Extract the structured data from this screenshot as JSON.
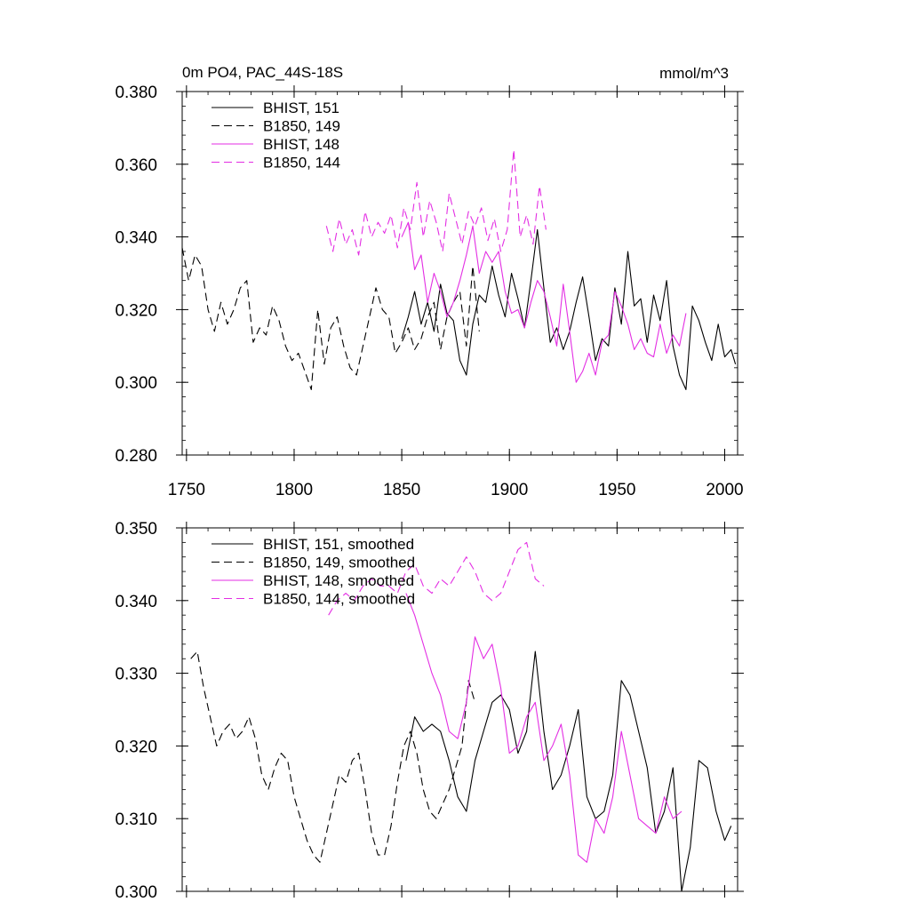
{
  "chart_data": [
    {
      "type": "line",
      "title": "0m PO4, PAC_44S-18S",
      "units": "mmol/m^3",
      "xlabel": "",
      "ylabel": "",
      "xlim": [
        1748,
        2006
      ],
      "ylim": [
        0.28,
        0.38
      ],
      "xticks": [
        1750,
        1800,
        1850,
        1900,
        1950,
        2000
      ],
      "yticks": [
        0.28,
        0.3,
        0.32,
        0.34,
        0.36,
        0.38
      ],
      "ytick_labels": [
        "0.280",
        "0.300",
        "0.320",
        "0.340",
        "0.360",
        "0.380"
      ],
      "show_xtick_labels": true,
      "legend_position": "top-left",
      "series": [
        {
          "name": "BHIST, 151",
          "color": "#000000",
          "dash": "solid",
          "x": [
            1850,
            1853,
            1856,
            1859,
            1862,
            1865,
            1868,
            1871,
            1874,
            1877,
            1880,
            1883,
            1886,
            1889,
            1892,
            1895,
            1898,
            1901,
            1904,
            1907,
            1910,
            1913,
            1916,
            1919,
            1922,
            1925,
            1928,
            1931,
            1934,
            1937,
            1940,
            1943,
            1946,
            1949,
            1952,
            1955,
            1958,
            1961,
            1964,
            1967,
            1970,
            1973,
            1976,
            1979,
            1982,
            1985,
            1988,
            1991,
            1994,
            1997,
            2000,
            2003,
            2005
          ],
          "y": [
            0.312,
            0.318,
            0.325,
            0.316,
            0.322,
            0.314,
            0.327,
            0.319,
            0.317,
            0.306,
            0.302,
            0.316,
            0.324,
            0.322,
            0.332,
            0.324,
            0.318,
            0.33,
            0.323,
            0.315,
            0.328,
            0.342,
            0.326,
            0.311,
            0.315,
            0.309,
            0.314,
            0.322,
            0.329,
            0.318,
            0.306,
            0.312,
            0.31,
            0.326,
            0.316,
            0.336,
            0.321,
            0.323,
            0.311,
            0.324,
            0.317,
            0.328,
            0.31,
            0.302,
            0.298,
            0.321,
            0.317,
            0.311,
            0.306,
            0.316,
            0.307,
            0.309,
            0.305
          ]
        },
        {
          "name": "B1850, 149",
          "color": "#000000",
          "dash": "dashed",
          "x": [
            1748,
            1751,
            1754,
            1757,
            1760,
            1763,
            1766,
            1769,
            1772,
            1775,
            1778,
            1781,
            1784,
            1787,
            1790,
            1793,
            1796,
            1799,
            1802,
            1805,
            1808,
            1811,
            1814,
            1817,
            1820,
            1823,
            1826,
            1829,
            1832,
            1835,
            1838,
            1841,
            1844,
            1847,
            1850,
            1853,
            1856,
            1859,
            1862,
            1865,
            1868,
            1871,
            1874,
            1877,
            1880,
            1883,
            1886
          ],
          "y": [
            0.337,
            0.328,
            0.335,
            0.332,
            0.32,
            0.314,
            0.322,
            0.316,
            0.32,
            0.326,
            0.328,
            0.311,
            0.315,
            0.313,
            0.321,
            0.317,
            0.31,
            0.306,
            0.308,
            0.303,
            0.298,
            0.32,
            0.305,
            0.315,
            0.318,
            0.31,
            0.304,
            0.302,
            0.31,
            0.318,
            0.326,
            0.32,
            0.318,
            0.308,
            0.311,
            0.315,
            0.309,
            0.312,
            0.318,
            0.322,
            0.309,
            0.318,
            0.322,
            0.325,
            0.31,
            0.332,
            0.314
          ]
        },
        {
          "name": "BHIST, 148",
          "color": "#e32ee3",
          "dash": "solid",
          "x": [
            1850,
            1853,
            1856,
            1859,
            1862,
            1865,
            1868,
            1871,
            1874,
            1877,
            1880,
            1883,
            1886,
            1889,
            1892,
            1895,
            1898,
            1901,
            1904,
            1907,
            1910,
            1913,
            1916,
            1919,
            1922,
            1925,
            1928,
            1931,
            1934,
            1937,
            1940,
            1943,
            1946,
            1949,
            1952,
            1955,
            1958,
            1961,
            1964,
            1967,
            1970,
            1973,
            1976,
            1979,
            1982
          ],
          "y": [
            0.34,
            0.344,
            0.331,
            0.335,
            0.322,
            0.33,
            0.325,
            0.318,
            0.322,
            0.328,
            0.335,
            0.343,
            0.33,
            0.336,
            0.333,
            0.336,
            0.325,
            0.319,
            0.32,
            0.315,
            0.322,
            0.328,
            0.325,
            0.318,
            0.31,
            0.327,
            0.314,
            0.3,
            0.303,
            0.308,
            0.302,
            0.311,
            0.313,
            0.325,
            0.321,
            0.316,
            0.309,
            0.312,
            0.308,
            0.307,
            0.316,
            0.308,
            0.313,
            0.31,
            0.319
          ]
        },
        {
          "name": "B1850, 144",
          "color": "#e32ee3",
          "dash": "dashed",
          "x": [
            1815,
            1818,
            1821,
            1824,
            1827,
            1830,
            1833,
            1836,
            1839,
            1842,
            1845,
            1848,
            1851,
            1854,
            1857,
            1860,
            1863,
            1866,
            1869,
            1872,
            1875,
            1878,
            1881,
            1884,
            1887,
            1890,
            1893,
            1896,
            1899,
            1902,
            1905,
            1908,
            1911,
            1914,
            1917
          ],
          "y": [
            0.343,
            0.336,
            0.345,
            0.338,
            0.342,
            0.335,
            0.347,
            0.34,
            0.344,
            0.341,
            0.346,
            0.337,
            0.348,
            0.342,
            0.355,
            0.34,
            0.35,
            0.344,
            0.336,
            0.352,
            0.345,
            0.338,
            0.347,
            0.343,
            0.348,
            0.339,
            0.345,
            0.336,
            0.342,
            0.364,
            0.34,
            0.346,
            0.338,
            0.354,
            0.342
          ]
        }
      ]
    },
    {
      "type": "line",
      "title": "",
      "units": "",
      "xlabel": "",
      "ylabel": "",
      "xlim": [
        1748,
        2006
      ],
      "ylim": [
        0.3,
        0.35
      ],
      "xticks": [
        1750,
        1800,
        1850,
        1900,
        1950,
        2000
      ],
      "yticks": [
        0.3,
        0.31,
        0.32,
        0.33,
        0.34,
        0.35
      ],
      "ytick_labels": [
        "0.300",
        "0.310",
        "0.320",
        "0.330",
        "0.340",
        "0.350"
      ],
      "show_xtick_labels": false,
      "legend_position": "top-left",
      "series": [
        {
          "name": "BHIST, 151, smoothed",
          "color": "#000000",
          "dash": "solid",
          "x": [
            1852,
            1856,
            1860,
            1864,
            1868,
            1872,
            1876,
            1880,
            1884,
            1888,
            1892,
            1896,
            1900,
            1904,
            1908,
            1912,
            1916,
            1920,
            1924,
            1928,
            1932,
            1936,
            1940,
            1944,
            1948,
            1952,
            1956,
            1960,
            1964,
            1968,
            1972,
            1976,
            1980,
            1984,
            1988,
            1992,
            1996,
            2000,
            2003
          ],
          "y": [
            0.318,
            0.324,
            0.322,
            0.323,
            0.322,
            0.318,
            0.313,
            0.311,
            0.318,
            0.322,
            0.326,
            0.327,
            0.325,
            0.319,
            0.322,
            0.333,
            0.322,
            0.314,
            0.316,
            0.32,
            0.325,
            0.313,
            0.31,
            0.311,
            0.316,
            0.329,
            0.327,
            0.322,
            0.317,
            0.308,
            0.311,
            0.317,
            0.3,
            0.306,
            0.318,
            0.317,
            0.311,
            0.307,
            0.309
          ]
        },
        {
          "name": "B1850, 149, smoothed",
          "color": "#000000",
          "dash": "dashed",
          "x": [
            1752,
            1755,
            1758,
            1761,
            1764,
            1767,
            1770,
            1773,
            1776,
            1779,
            1782,
            1785,
            1788,
            1791,
            1794,
            1797,
            1800,
            1803,
            1806,
            1809,
            1812,
            1815,
            1818,
            1821,
            1824,
            1827,
            1830,
            1833,
            1836,
            1839,
            1842,
            1845,
            1848,
            1851,
            1854,
            1857,
            1860,
            1863,
            1866,
            1869,
            1872,
            1875,
            1878,
            1881,
            1884
          ],
          "y": [
            0.332,
            0.333,
            0.328,
            0.324,
            0.32,
            0.322,
            0.323,
            0.321,
            0.322,
            0.324,
            0.321,
            0.316,
            0.314,
            0.317,
            0.319,
            0.318,
            0.313,
            0.31,
            0.307,
            0.305,
            0.304,
            0.308,
            0.312,
            0.316,
            0.315,
            0.318,
            0.319,
            0.314,
            0.308,
            0.305,
            0.305,
            0.309,
            0.315,
            0.32,
            0.322,
            0.319,
            0.314,
            0.311,
            0.31,
            0.312,
            0.314,
            0.317,
            0.32,
            0.329,
            0.326
          ]
        },
        {
          "name": "BHIST, 148, smoothed",
          "color": "#e32ee3",
          "dash": "solid",
          "x": [
            1852,
            1856,
            1860,
            1864,
            1868,
            1872,
            1876,
            1880,
            1884,
            1888,
            1892,
            1896,
            1900,
            1904,
            1908,
            1912,
            1916,
            1920,
            1924,
            1928,
            1932,
            1936,
            1940,
            1944,
            1948,
            1952,
            1956,
            1960,
            1964,
            1968,
            1972,
            1976,
            1980
          ],
          "y": [
            0.341,
            0.338,
            0.334,
            0.33,
            0.327,
            0.322,
            0.321,
            0.326,
            0.335,
            0.332,
            0.334,
            0.328,
            0.319,
            0.32,
            0.324,
            0.326,
            0.318,
            0.32,
            0.323,
            0.316,
            0.305,
            0.304,
            0.31,
            0.308,
            0.313,
            0.322,
            0.316,
            0.31,
            0.309,
            0.308,
            0.313,
            0.31,
            0.311
          ]
        },
        {
          "name": "B1850, 144, smoothed",
          "color": "#e32ee3",
          "dash": "dashed",
          "x": [
            1816,
            1820,
            1824,
            1828,
            1832,
            1836,
            1840,
            1844,
            1848,
            1852,
            1856,
            1860,
            1864,
            1868,
            1872,
            1876,
            1880,
            1884,
            1888,
            1892,
            1896,
            1900,
            1904,
            1908,
            1912,
            1916
          ],
          "y": [
            0.338,
            0.34,
            0.341,
            0.34,
            0.342,
            0.343,
            0.342,
            0.342,
            0.341,
            0.344,
            0.345,
            0.342,
            0.341,
            0.343,
            0.342,
            0.344,
            0.346,
            0.344,
            0.341,
            0.34,
            0.341,
            0.344,
            0.347,
            0.348,
            0.343,
            0.342
          ]
        }
      ]
    }
  ]
}
